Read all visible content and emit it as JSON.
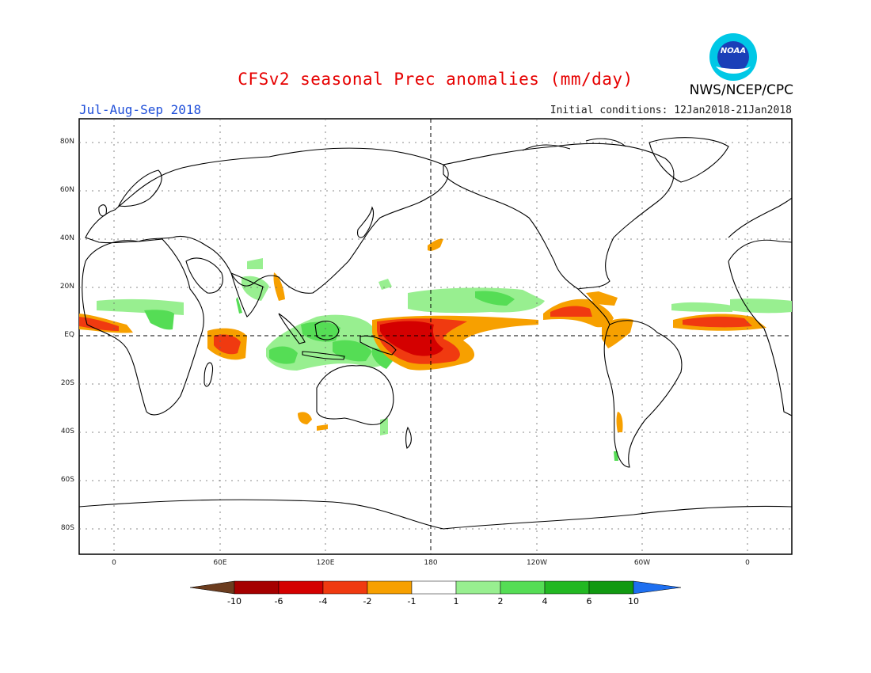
{
  "title": "CFSv2 seasonal Prec anomalies (mm/day)",
  "agency": "NWS/NCEP/CPC",
  "logo_text": "NOAA",
  "season": "Jul-Aug-Sep 2018",
  "initial_conditions": "Initial conditions: 12Jan2018-21Jan2018",
  "lat_ticks": [
    "80N",
    "60N",
    "40N",
    "20N",
    "EQ",
    "20S",
    "40S",
    "60S",
    "80S"
  ],
  "lon_ticks": [
    "0",
    "60E",
    "120E",
    "180",
    "120W",
    "60W",
    "0"
  ],
  "colorbar": {
    "tick_labels": [
      "-10",
      "-6",
      "-4",
      "-2",
      "-1",
      "1",
      "2",
      "4",
      "6",
      "10"
    ],
    "colors": [
      "#6b3c1e",
      "#a50000",
      "#d40000",
      "#f03a10",
      "#f7a000",
      "#ffffff",
      "#98ef90",
      "#55dd55",
      "#22b822",
      "#119911",
      "#1e6ff0"
    ]
  },
  "colors": {
    "dry_strong": "#c80000",
    "dry_mid": "#f03a10",
    "dry_weak": "#f7a000",
    "wet_weak": "#98ef90",
    "wet_mid": "#55dd55",
    "wet_strong": "#22b822"
  }
}
